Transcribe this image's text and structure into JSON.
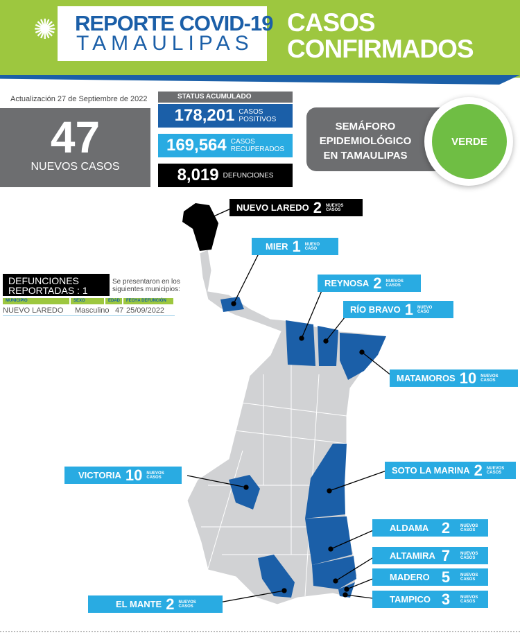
{
  "header": {
    "logo_line1": "REPORTE COVID-19",
    "logo_line2": "TAMAULIPAS",
    "title_line1": "CASOS",
    "title_line2": "CONFIRMADOS"
  },
  "update": "Actualización  27 de Septiembre de 2022",
  "new_cases": {
    "value": "47",
    "label": "NUEVOS CASOS"
  },
  "status": {
    "header": "STATUS ACUMULADO",
    "positives": {
      "value": "178,201",
      "label1": "CASOS",
      "label2": "POSITIVOS"
    },
    "recovered": {
      "value": "169,564",
      "label1": "CASOS",
      "label2": "RECUPERADOS"
    },
    "deaths": {
      "value": "8,019",
      "label": "DEFUNCIONES"
    }
  },
  "semaforo": {
    "line1": "SEMÁFORO",
    "line2": "EPIDEMIOLÓGICO",
    "line3": "EN TAMAULIPAS",
    "status": "VERDE",
    "color": "#6fbe44"
  },
  "deaths_reported": {
    "title1": "DEFUNCIONES",
    "title2": "REPORTADAS : 1",
    "note1": "Se presentaron en los",
    "note2": "siguientes municipios:",
    "headers": [
      "MUNICIPIO",
      "SEXO",
      "EDAD",
      "FECHA DEFUNCIÓN"
    ],
    "rows": [
      [
        "NUEVO LAREDO",
        "Masculino",
        "47",
        "25/09/2022"
      ]
    ]
  },
  "municipalities": [
    {
      "name": "NUEVO LAREDO",
      "cases": "2",
      "unit1": "NUEVOS",
      "unit2": "CASOS"
    },
    {
      "name": "MIER",
      "cases": "1",
      "unit1": "NUEVO",
      "unit2": "CASO"
    },
    {
      "name": "REYNOSA",
      "cases": "2",
      "unit1": "NUEVOS",
      "unit2": "CASOS"
    },
    {
      "name": "RÍO BRAVO",
      "cases": "1",
      "unit1": "NUEVO",
      "unit2": "CASO"
    },
    {
      "name": "MATAMOROS",
      "cases": "10",
      "unit1": "NUEVOS",
      "unit2": "CASOS"
    },
    {
      "name": "VICTORIA",
      "cases": "10",
      "unit1": "NUEVOS",
      "unit2": "CASOS"
    },
    {
      "name": "SOTO LA MARINA",
      "cases": "2",
      "unit1": "NUEVOS",
      "unit2": "CASOS"
    },
    {
      "name": "ALDAMA",
      "cases": "2",
      "unit1": "NUEVOS",
      "unit2": "CASOS"
    },
    {
      "name": "ALTAMIRA",
      "cases": "7",
      "unit1": "NUEVOS",
      "unit2": "CASOS"
    },
    {
      "name": "MADERO",
      "cases": "5",
      "unit1": "NUEVOS",
      "unit2": "CASOS"
    },
    {
      "name": "TAMPICO",
      "cases": "3",
      "unit1": "NUEVOS",
      "unit2": "CASOS"
    },
    {
      "name": "EL MANTE",
      "cases": "2",
      "unit1": "NUEVOS",
      "unit2": "CASOS"
    }
  ],
  "colors": {
    "green": "#9dc73f",
    "blue": "#1b5fa8",
    "cyan": "#29abe2",
    "gray": "#6d6e70",
    "map_gray": "#d1d2d4"
  }
}
